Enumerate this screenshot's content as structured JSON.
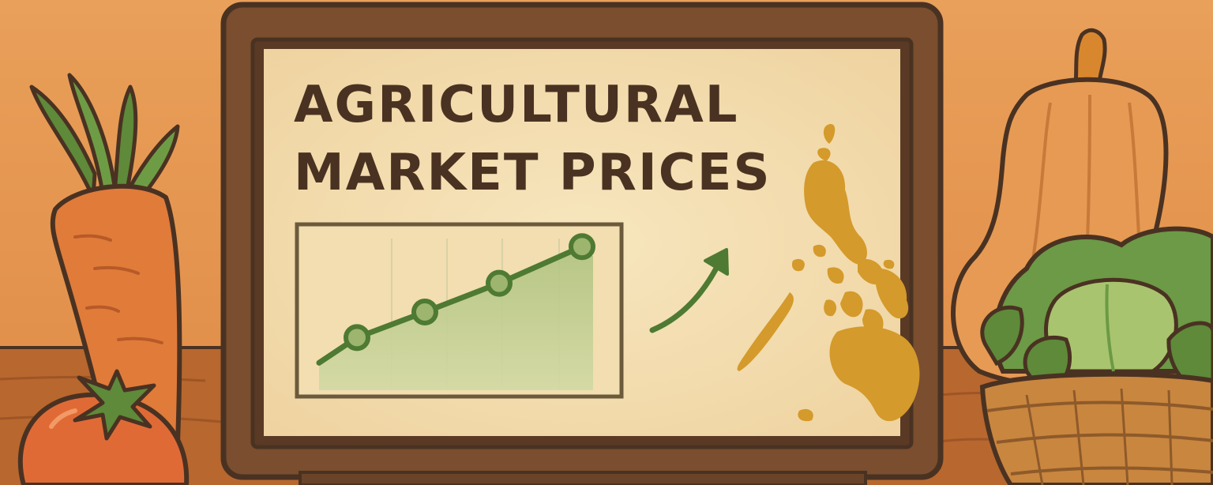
{
  "banner": {
    "title_line1": "AGRICULTURAL",
    "title_line2": "MARKET PRICES"
  },
  "chart_data": {
    "type": "line",
    "x": [
      1,
      2,
      3,
      4
    ],
    "values": [
      33,
      49,
      67,
      90
    ],
    "ylim": [
      0,
      100
    ],
    "grid": true,
    "title": "",
    "xlabel": "",
    "ylabel": ""
  },
  "icons": {
    "trend": "arrow-up-right-icon",
    "map": "philippines-map-icon"
  },
  "colors": {
    "background": "#E4954F",
    "frame": "#7A4E2E",
    "outline": "#4A3222",
    "screen": "#F3DDB0",
    "chart_line": "#4E7A33",
    "chart_fill": "#B9C98C",
    "map": "#D49A2B",
    "carrot": "#E07B3A",
    "tomato": "#E06A36",
    "leaf": "#5E8A3A",
    "squash": "#E69A53",
    "lettuce": "#6C9A46"
  }
}
